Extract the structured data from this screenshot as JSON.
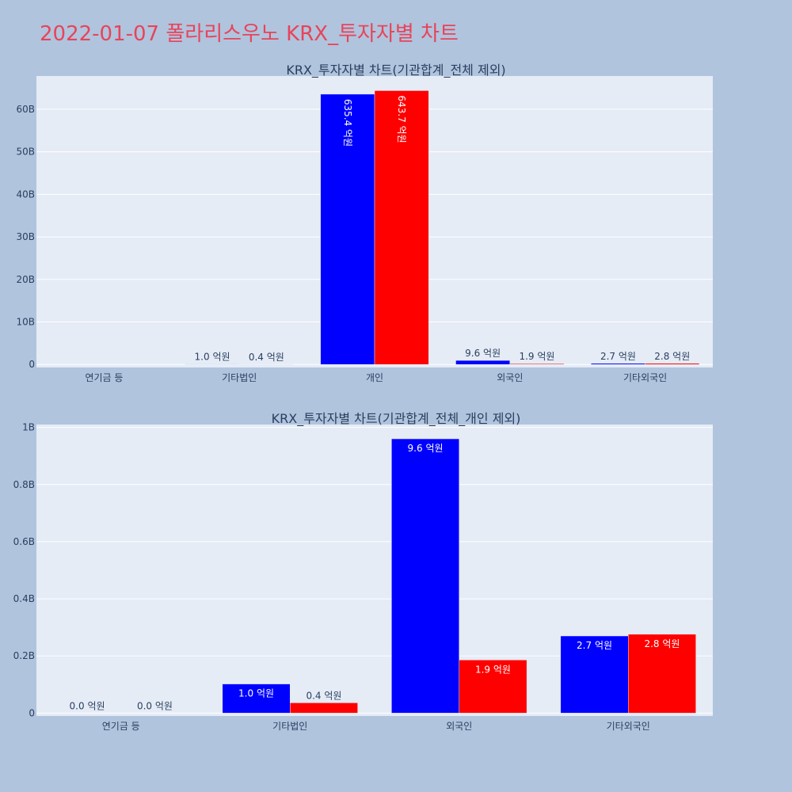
{
  "page": {
    "title": "2022-01-07 폴라리스우노 KRX_투자자별 차트"
  },
  "colors": {
    "background": "#b0c4de",
    "plot": "#e5ecf6",
    "title": "#e8445a",
    "buy": "#0000ff",
    "sell": "#ff0000",
    "text": "#2a3f5f"
  },
  "chart_data": [
    {
      "type": "bar",
      "title": "KRX_투자자별 차트(기관합계_전체 제외)",
      "categories": [
        "연기금 등",
        "기타법인",
        "개인",
        "외국인",
        "기타외국인"
      ],
      "series": [
        {
          "color": "#0000ff",
          "values": [
            0,
            102000000,
            63540000000,
            960000000,
            270000000
          ],
          "labels": [
            "",
            "1.0 억원",
            "635.4 억원",
            "9.6 억원",
            "2.7 억원"
          ]
        },
        {
          "color": "#ff0000",
          "values": [
            0,
            36000000,
            64370000000,
            186000000,
            276000000
          ],
          "labels": [
            "",
            "0.4 억원",
            "643.7 억원",
            "1.9 억원",
            "2.8 억원"
          ]
        }
      ],
      "yticks": [
        "0",
        "10B",
        "20B",
        "30B",
        "40B",
        "50B",
        "60B"
      ],
      "ytick_values": [
        0,
        10000000000,
        20000000000,
        30000000000,
        40000000000,
        50000000000,
        60000000000
      ],
      "ylim": [
        -700000000,
        67800000000
      ],
      "grid": true,
      "legend": "none"
    },
    {
      "type": "bar",
      "title": "KRX_투자자별 차트(기관합계_전체_개인 제외)",
      "categories": [
        "연기금 등",
        "기타법인",
        "외국인",
        "기타외국인"
      ],
      "series": [
        {
          "color": "#0000ff",
          "values": [
            0,
            102000000,
            960000000,
            270000000
          ],
          "labels": [
            "0.0 억원",
            "1.0 억원",
            "9.6 억원",
            "2.7 억원"
          ]
        },
        {
          "color": "#ff0000",
          "values": [
            0,
            36000000,
            186000000,
            276000000
          ],
          "labels": [
            "0.0 억원",
            "0.4 억원",
            "1.9 억원",
            "2.8 억원"
          ]
        }
      ],
      "yticks": [
        "0",
        "0.2B",
        "0.4B",
        "0.6B",
        "0.8B",
        "1B"
      ],
      "ytick_values": [
        0,
        200000000,
        400000000,
        600000000,
        800000000,
        1000000000
      ],
      "ylim": [
        -10000000,
        1010000000
      ],
      "grid": true,
      "legend": "none"
    }
  ]
}
